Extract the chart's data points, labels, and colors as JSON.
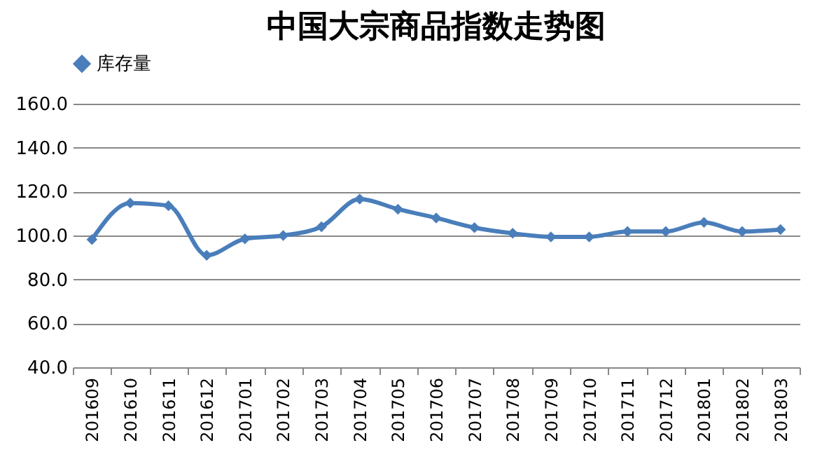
{
  "chart_data": {
    "type": "line",
    "title": "中国大宗商品指数走势图",
    "categories": [
      "201609",
      "201610",
      "201611",
      "201612",
      "201701",
      "201702",
      "201703",
      "201704",
      "201705",
      "201706",
      "201707",
      "201708",
      "201709",
      "201710",
      "201711",
      "201712",
      "201801",
      "201802",
      "201803"
    ],
    "series": [
      {
        "name": "库存量",
        "color": "#4a7ebb",
        "values": [
          98.2,
          114.8,
          113.6,
          91.0,
          98.5,
          100.0,
          104.0,
          116.6,
          112.0,
          108.0,
          103.6,
          101.0,
          99.4,
          99.4,
          101.8,
          101.8,
          106.0,
          101.8,
          102.7
        ]
      }
    ],
    "ylim": [
      40,
      160
    ],
    "yticks": [
      {
        "value": 40,
        "label": "40.0"
      },
      {
        "value": 60,
        "label": "60.0"
      },
      {
        "value": 80,
        "label": "80.0"
      },
      {
        "value": 100,
        "label": "100.0"
      },
      {
        "value": 120,
        "label": "120.0"
      },
      {
        "value": 140,
        "label": "140.0"
      },
      {
        "value": 160,
        "label": "160.0"
      }
    ],
    "grid": "y",
    "legend": "top",
    "marker": "diamond",
    "line_style": "solid"
  }
}
